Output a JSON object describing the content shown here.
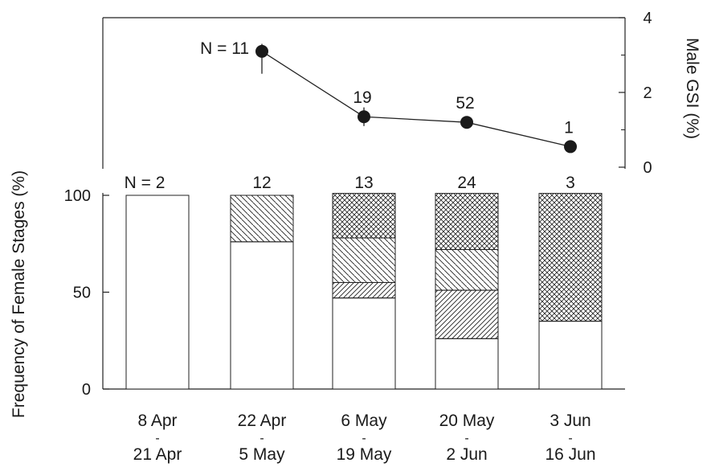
{
  "chart_data": {
    "type": "bar",
    "stacked": true,
    "categories": [
      {
        "line1": "8 Apr",
        "line2": "21 Apr"
      },
      {
        "line1": "22 Apr",
        "line2": "5 May"
      },
      {
        "line1": "6 May",
        "line2": "19 May"
      },
      {
        "line1": "20 May",
        "line2": "2 Jun"
      },
      {
        "line1": "3 Jun",
        "line2": "16 Jun"
      }
    ],
    "category_dash": "-",
    "female_n": [
      "N = 2",
      "12",
      "13",
      "24",
      "3"
    ],
    "series": [
      {
        "pattern": "blank",
        "values": [
          100,
          76,
          47,
          26,
          35
        ]
      },
      {
        "pattern": "diag-fine",
        "values": [
          0,
          0,
          8,
          25,
          0
        ]
      },
      {
        "pattern": "diag-wide",
        "values": [
          0,
          24,
          23,
          21,
          0
        ]
      },
      {
        "pattern": "crosshatch",
        "values": [
          0,
          0,
          23,
          29,
          66
        ]
      }
    ],
    "ylabel": "Frequency of Female Stages (%)",
    "ylim": [
      0,
      100
    ],
    "yticks": [
      "0",
      "50",
      "100"
    ],
    "y2label": "Male GSI (%)",
    "y2lim": [
      0,
      4
    ],
    "y2ticks": [
      "0",
      "2",
      "4"
    ],
    "male_gsi": {
      "type": "line",
      "category_index": [
        1,
        2,
        3,
        4
      ],
      "values": [
        3.1,
        1.35,
        1.2,
        0.55
      ],
      "error_low": [
        2.5,
        1.1,
        1.2,
        0.55
      ],
      "error_high": [
        3.3,
        1.6,
        1.2,
        0.55
      ],
      "n_labels": [
        "N = 11",
        "19",
        "52",
        "1"
      ]
    }
  }
}
